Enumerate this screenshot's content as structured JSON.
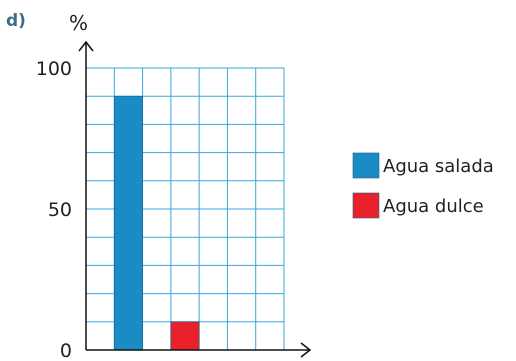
{
  "part_label": "d)",
  "chart_data": {
    "type": "bar",
    "ylabel": "%",
    "xlabel": "",
    "ylim": [
      0,
      100
    ],
    "yticks": [
      0,
      50,
      100
    ],
    "grid": true,
    "legend_position": "right",
    "series": [
      {
        "name": "Agua salada",
        "value": 90,
        "color": "#1a8bc4"
      },
      {
        "name": "Agua dulce",
        "value": 10,
        "color": "#e8212b"
      }
    ]
  }
}
